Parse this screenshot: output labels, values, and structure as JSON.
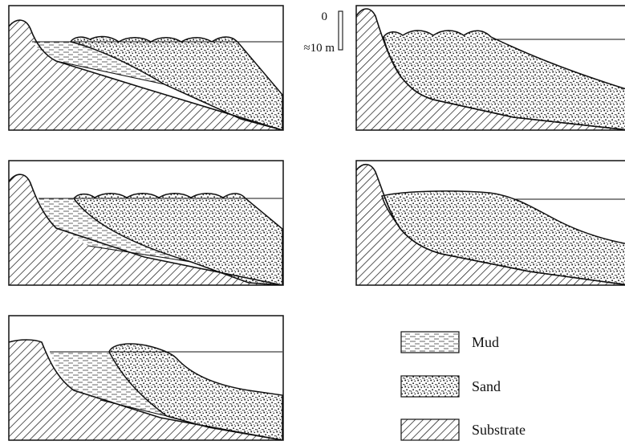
{
  "scale_bar": {
    "top_label": "0",
    "bottom_label": "≈10 m"
  },
  "legend": [
    {
      "key": "mud",
      "label": "Mud",
      "pattern": "dashes"
    },
    {
      "key": "sand",
      "label": "Sand",
      "pattern": "stipple"
    },
    {
      "key": "substrate",
      "label": "Substrate",
      "pattern": "hatch"
    }
  ],
  "colors": {
    "ink": "#111111",
    "background": "#ffffff"
  }
}
